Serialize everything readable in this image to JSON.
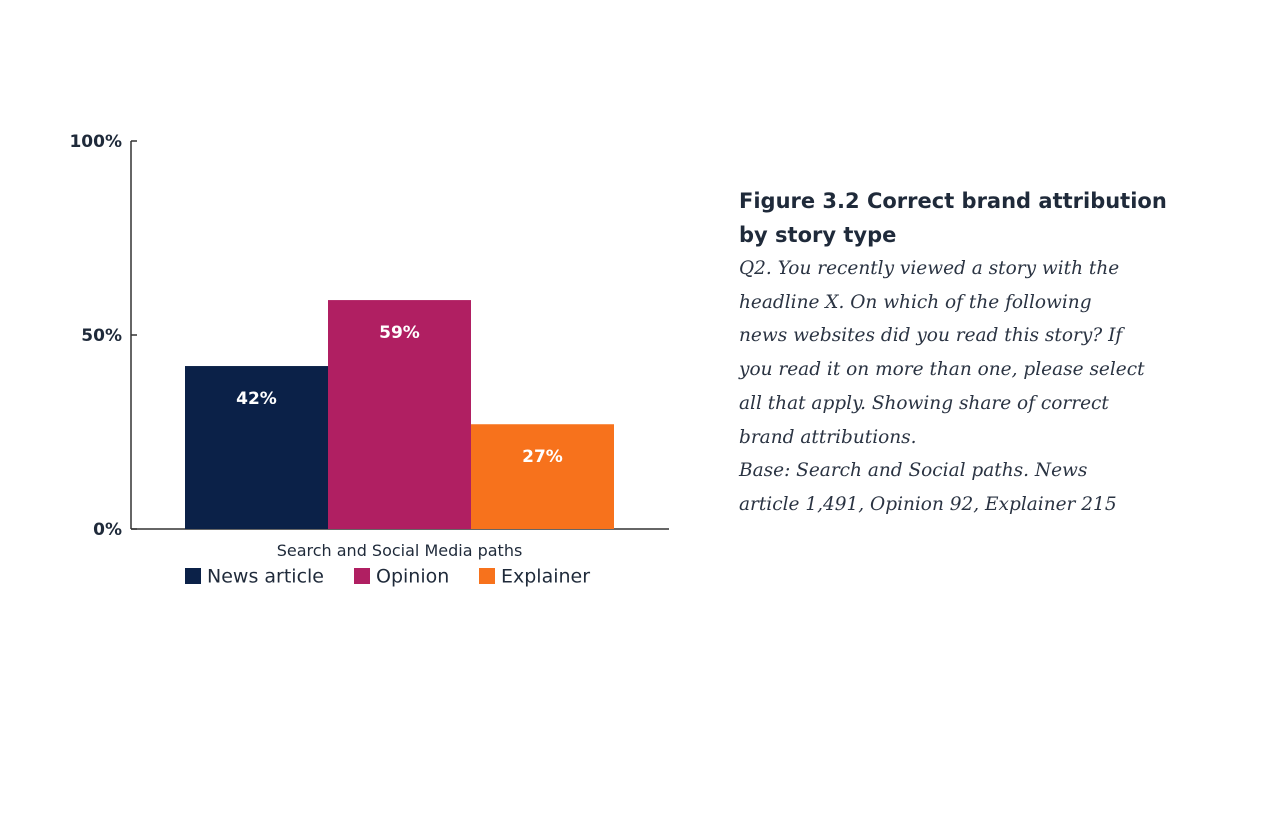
{
  "chart_data": {
    "type": "bar",
    "categories": [
      "Search and Social Media paths"
    ],
    "series": [
      {
        "name": "News article",
        "values": [
          42
        ],
        "label": "42%",
        "color": "#0b2148"
      },
      {
        "name": "Opinion",
        "values": [
          59
        ],
        "label": "59%",
        "color": "#b01f62"
      },
      {
        "name": "Explainer",
        "values": [
          27
        ],
        "label": "27%",
        "color": "#f7721c"
      }
    ],
    "y_ticks": [
      {
        "value": 0,
        "label": "0%"
      },
      {
        "value": 50,
        "label": "50%"
      },
      {
        "value": 100,
        "label": "100%"
      }
    ],
    "ylim": [
      0,
      100
    ],
    "grid": false,
    "legend_position": "bottom",
    "axis_color": "#333333"
  },
  "caption": {
    "title": "Figure 3.2 Correct brand attribution by story type",
    "body_lines": [
      "Q2. You recently viewed a story with the",
      "headline X. On which of the following",
      "news websites did you read this story? If",
      "you read it on more than one, please select",
      "all that apply. Showing share of correct",
      "brand attributions.",
      "Base: Search and Social paths. News",
      "article 1,491, Opinion 92, Explainer 215"
    ]
  }
}
